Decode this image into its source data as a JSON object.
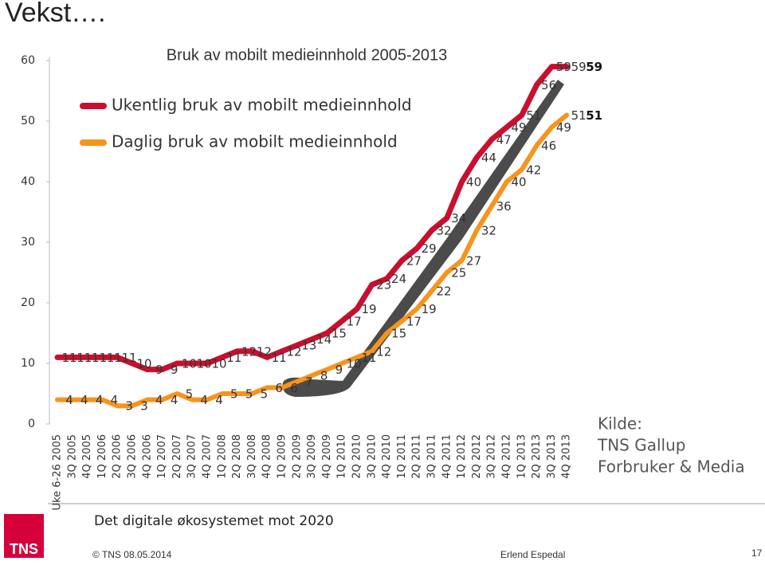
{
  "slide": {
    "title": "Vekst….",
    "footer": "Det digitale økosystemet mot 2020",
    "copyright": "© TNS 08.05.2014",
    "author": "Erlend Espedal",
    "page": "17",
    "logo": "TNS",
    "source": [
      "Kilde:",
      "TNS Gallup",
      "Forbruker & Media"
    ]
  },
  "chart_data": {
    "type": "line",
    "title": "Bruk av mobilt medieinnhold 2005-2013",
    "categories": [
      "Uke 6-26 2005",
      "3Q 2005",
      "4Q 2005",
      "1Q 2006",
      "2Q 2006",
      "3Q 2006",
      "4Q 2006",
      "1Q 2007",
      "2Q 2007",
      "3Q 2007",
      "4Q 2007",
      "1Q 2008",
      "2Q 2008",
      "3Q 2008",
      "4Q 2008",
      "1Q 2009",
      "2Q 2009",
      "3Q 2009",
      "4Q 2009",
      "1Q 2010",
      "2Q 2010",
      "3Q 2010",
      "4Q 2010",
      "1Q 2011",
      "2Q 2011",
      "3Q 2011",
      "4Q 2011",
      "1Q 2012",
      "2Q 2012",
      "3Q 2012",
      "4Q 2012",
      "1Q 2013",
      "2Q 2013",
      "3Q 2013",
      "4Q 2013"
    ],
    "series": [
      {
        "name": "Ukentlig bruk av mobilt medieinnhold",
        "color": "#c8102e",
        "values": [
          11,
          11,
          11,
          11,
          11,
          10,
          9,
          9,
          10,
          10,
          10,
          11,
          12,
          12,
          11,
          12,
          13,
          14,
          15,
          17,
          19,
          23,
          24,
          27,
          29,
          32,
          34,
          40,
          44,
          47,
          49,
          51,
          56,
          59,
          59
        ]
      },
      {
        "name": "Daglig bruk av mobilt medieinnhold",
        "color": "#f7941d",
        "values": [
          4,
          4,
          4,
          4,
          3,
          3,
          4,
          4,
          5,
          4,
          4,
          5,
          5,
          5,
          6,
          6,
          7,
          8,
          9,
          10,
          11,
          12,
          15,
          17,
          19,
          22,
          25,
          27,
          32,
          36,
          40,
          42,
          46,
          49,
          51
        ]
      }
    ],
    "annotations": [
      "59",
      "51"
    ],
    "ylim": [
      0,
      60
    ],
    "yticks": [
      0,
      10,
      20,
      30,
      40,
      50,
      60
    ]
  }
}
